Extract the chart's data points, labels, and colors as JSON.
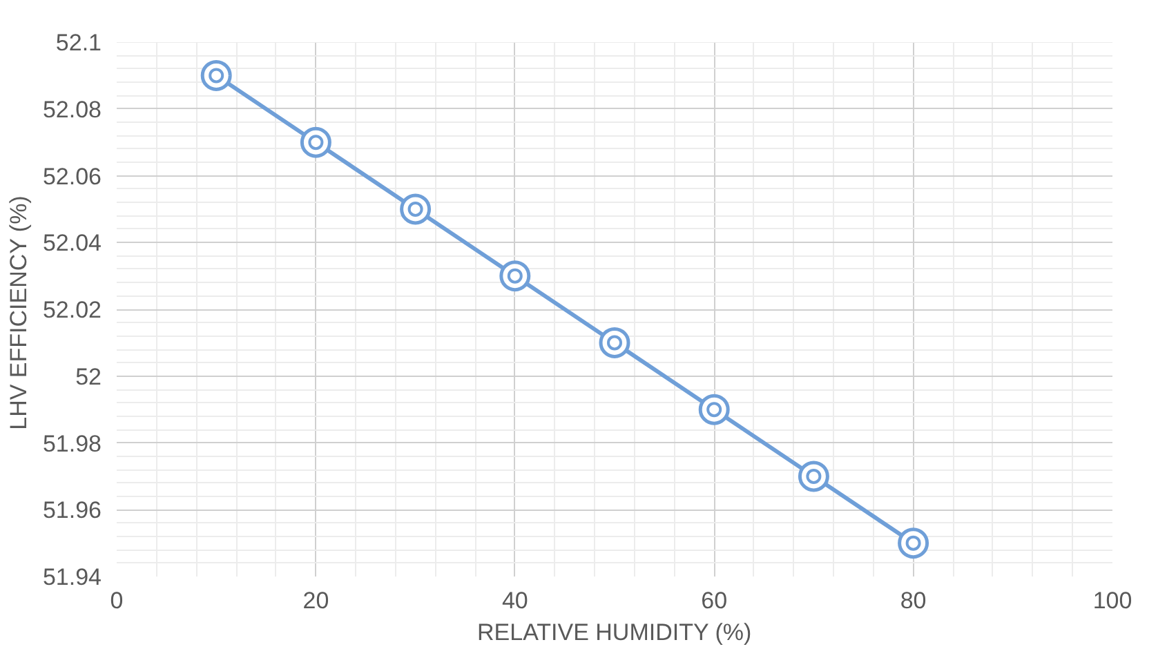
{
  "chart_data": {
    "type": "line",
    "xlabel": "RELATIVE HUMIDITY (%)",
    "ylabel": "LHV  EFFICIENCY (%)",
    "x": [
      10,
      20,
      30,
      40,
      50,
      60,
      70,
      80
    ],
    "series": [
      {
        "color": "#6f9fd8",
        "values": [
          52.09,
          52.07,
          52.05,
          52.03,
          52.01,
          51.99,
          51.97,
          51.95
        ]
      }
    ],
    "xlim": [
      0,
      100
    ],
    "xticks": [
      0,
      20,
      40,
      60,
      80,
      100
    ],
    "ylim": [
      51.94,
      52.1
    ],
    "yticks": [
      51.94,
      51.96,
      51.98,
      52,
      52.02,
      52.04,
      52.06,
      52.08,
      52.1
    ],
    "grid": true,
    "marker": "circle",
    "line_style": "solid"
  }
}
